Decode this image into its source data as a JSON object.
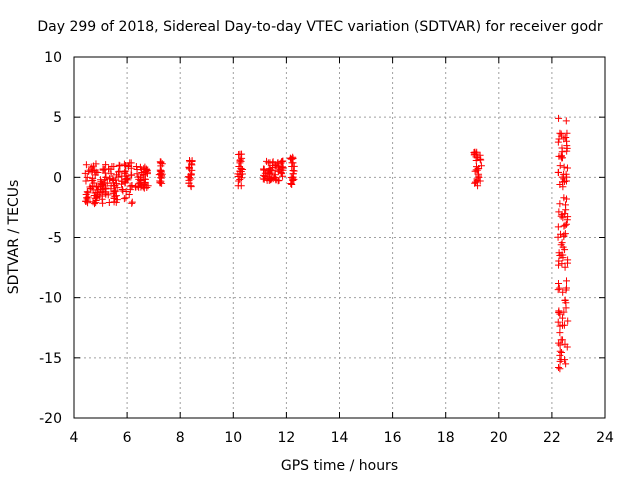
{
  "chart_data": {
    "type": "scatter",
    "title": "Day 299 of 2018, Sidereal Day-to-day VTEC variation (SDTVAR) for receiver godr",
    "xlabel": "GPS time / hours",
    "ylabel": "SDTVAR / TECUs",
    "xlim": [
      4,
      24
    ],
    "ylim": [
      -20,
      10
    ],
    "xticks": [
      "4",
      "6",
      "8",
      "10",
      "12",
      "14",
      "16",
      "18",
      "20",
      "22",
      "24"
    ],
    "yticks": [
      "10",
      "5",
      "0",
      "-5",
      "-10",
      "-15",
      "-20"
    ],
    "grid": true,
    "marker": "+",
    "color": "#ff0000",
    "series": [
      {
        "name": "SDTVAR",
        "segments": [
          {
            "x": [
              4.4,
              6.2
            ],
            "y": [
              -2.2,
              1.2
            ]
          },
          {
            "x": [
              6.3,
              6.8
            ],
            "y": [
              -1.0,
              0.9
            ]
          },
          {
            "x": [
              7.2,
              7.35
            ],
            "y": [
              -0.6,
              1.4
            ]
          },
          {
            "x": [
              8.3,
              8.45
            ],
            "y": [
              -0.8,
              1.5
            ]
          },
          {
            "x": [
              10.15,
              10.35
            ],
            "y": [
              -0.8,
              2.0
            ]
          },
          {
            "x": [
              11.1,
              11.9
            ],
            "y": [
              -0.3,
              1.4
            ]
          },
          {
            "x": [
              12.1,
              12.3
            ],
            "y": [
              -0.7,
              1.7
            ]
          },
          {
            "x": [
              19.05,
              19.35
            ],
            "y": [
              -0.8,
              2.2
            ]
          },
          {
            "x": [
              22.2,
              22.6
            ],
            "y": [
              -1.0,
              5.0
            ]
          },
          {
            "x": [
              22.2,
              22.6
            ],
            "y": [
              -7.5,
              -1.5
            ]
          },
          {
            "x": [
              22.2,
              22.6
            ],
            "y": [
              -16.0,
              -8.5
            ]
          }
        ],
        "points": [
          [
            4.45,
            -2.0
          ],
          [
            4.5,
            -1.2
          ],
          [
            4.55,
            0.5
          ],
          [
            4.6,
            -0.8
          ],
          [
            4.7,
            0.6
          ],
          [
            4.8,
            -1.3
          ],
          [
            4.9,
            0.4
          ],
          [
            5.0,
            -1.0
          ],
          [
            5.1,
            0.6
          ],
          [
            5.2,
            -0.9
          ],
          [
            5.3,
            0.7
          ],
          [
            5.4,
            -0.7
          ],
          [
            5.5,
            0.9
          ],
          [
            5.6,
            -0.5
          ],
          [
            5.7,
            1.0
          ],
          [
            5.8,
            -0.3
          ],
          [
            5.9,
            1.1
          ],
          [
            6.0,
            -0.1
          ],
          [
            6.1,
            1.2
          ],
          [
            6.15,
            0.2
          ],
          [
            4.5,
            0.0
          ],
          [
            4.8,
            0.2
          ],
          [
            5.2,
            0.0
          ],
          [
            5.6,
            0.2
          ],
          [
            4.45,
            -0.3
          ],
          [
            4.6,
            0.6
          ],
          [
            5.0,
            -0.2
          ],
          [
            5.4,
            0.3
          ],
          [
            5.8,
            0.1
          ],
          [
            6.05,
            0.9
          ],
          [
            6.35,
            0.9
          ],
          [
            6.45,
            -0.5
          ],
          [
            6.55,
            0.4
          ],
          [
            6.65,
            -0.9
          ],
          [
            6.75,
            0.6
          ],
          [
            6.5,
            0.0
          ],
          [
            7.25,
            1.3
          ],
          [
            7.25,
            0.6
          ],
          [
            7.3,
            -0.5
          ],
          [
            7.3,
            0.1
          ],
          [
            8.35,
            1.4
          ],
          [
            8.35,
            0.8
          ],
          [
            8.4,
            -0.7
          ],
          [
            8.4,
            0.2
          ],
          [
            10.2,
            1.9
          ],
          [
            10.25,
            1.2
          ],
          [
            10.25,
            0.2
          ],
          [
            10.3,
            -0.7
          ],
          [
            10.2,
            -0.3
          ],
          [
            10.3,
            0.7
          ],
          [
            11.15,
            0.6
          ],
          [
            11.3,
            0.3
          ],
          [
            11.5,
            1.3
          ],
          [
            11.55,
            0.0
          ],
          [
            11.6,
            -0.2
          ],
          [
            11.7,
            0.8
          ],
          [
            11.8,
            0.4
          ],
          [
            12.15,
            1.6
          ],
          [
            12.2,
            0.9
          ],
          [
            12.2,
            -0.6
          ],
          [
            12.25,
            0.3
          ],
          [
            12.25,
            1.2
          ],
          [
            19.1,
            2.1
          ],
          [
            19.15,
            1.4
          ],
          [
            19.2,
            0.6
          ],
          [
            19.2,
            -0.7
          ],
          [
            19.25,
            0.0
          ],
          [
            19.3,
            1.5
          ],
          [
            19.3,
            -0.3
          ],
          [
            22.25,
            4.9
          ],
          [
            22.35,
            3.6
          ],
          [
            22.45,
            3.2
          ],
          [
            22.55,
            3.0
          ],
          [
            22.25,
            0.4
          ],
          [
            22.3,
            -0.6
          ],
          [
            22.4,
            -0.4
          ],
          [
            22.55,
            -0.3
          ],
          [
            22.3,
            -2.2
          ],
          [
            22.45,
            -1.7
          ],
          [
            22.55,
            -1.8
          ],
          [
            22.25,
            -7.3
          ],
          [
            22.3,
            -6.5
          ],
          [
            22.35,
            -5.6
          ],
          [
            22.45,
            -4.8
          ],
          [
            22.55,
            -3.9
          ],
          [
            22.25,
            -15.8
          ],
          [
            22.3,
            -14.8
          ],
          [
            22.35,
            -13.5
          ],
          [
            22.4,
            -12.3
          ],
          [
            22.45,
            -11.2
          ],
          [
            22.5,
            -10.2
          ],
          [
            22.55,
            -9.2
          ],
          [
            22.55,
            -8.6
          ],
          [
            22.3,
            -12.9
          ],
          [
            22.4,
            -11.7
          ]
        ]
      }
    ]
  }
}
